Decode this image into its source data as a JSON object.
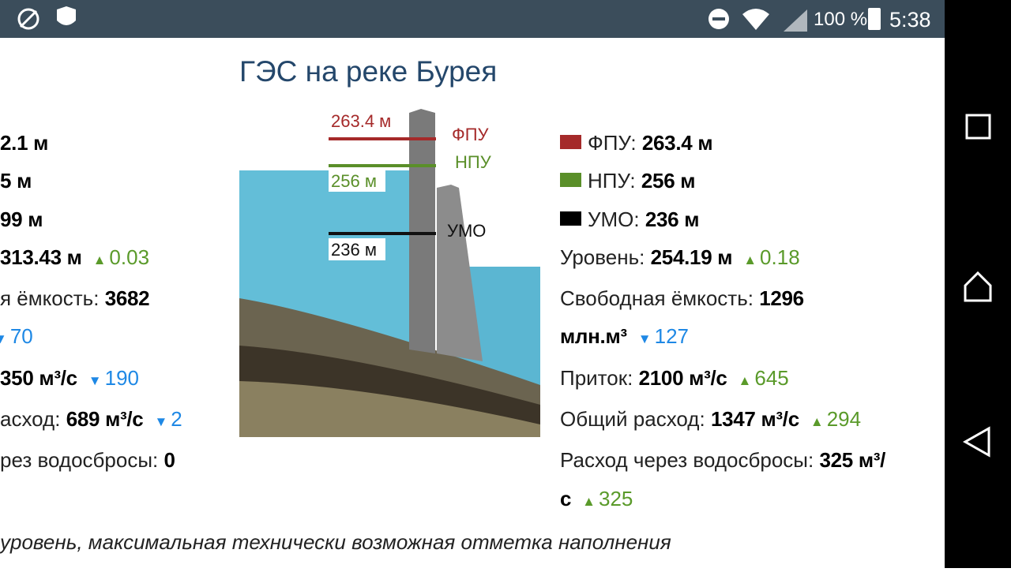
{
  "status_bar": {
    "battery": "100 %",
    "time": "5:38"
  },
  "title": "ГЭС на реке Бурея",
  "left_panel": [
    {
      "value": "2.1 м"
    },
    {
      "value": "5 м"
    },
    {
      "value": "99 м"
    },
    {
      "value": "313.43 м",
      "delta": "0.03",
      "trend": "up"
    },
    {
      "label": "я ёмкость:",
      "value": "3682"
    },
    {
      "delta": "70",
      "trend": "down"
    },
    {
      "value": "350 м³/с",
      "delta": "190",
      "trend": "down"
    },
    {
      "label": "асход:",
      "value": "689 м³/с",
      "delta": "2",
      "trend": "down"
    },
    {
      "label": "рез водосбросы:",
      "value": "0"
    }
  ],
  "diagram": {
    "levels": [
      {
        "value": "263.4 м",
        "name": "ФПУ",
        "color": "#a52a2a"
      },
      {
        "value": "256 м",
        "name": "НПУ",
        "color": "#5a8f29"
      },
      {
        "value": "236 м",
        "name": "УМО",
        "color": "#111111"
      }
    ]
  },
  "right_panel": [
    {
      "label": "ФПУ:",
      "value": "263.4 м",
      "swatch": "#a52a2a"
    },
    {
      "label": "НПУ:",
      "value": "256 м",
      "swatch": "#5a8f29"
    },
    {
      "label": "УМО:",
      "value": "236 м",
      "swatch": "#000000"
    },
    {
      "label": "Уровень:",
      "value": "254.19 м",
      "delta": "0.18",
      "trend": "up"
    },
    {
      "label": "Свободная ёмкость:",
      "value": "1296 млн.м³",
      "delta": "127",
      "trend": "down"
    },
    {
      "label": "Приток:",
      "value": "2100 м³/с",
      "delta": "645",
      "trend": "up"
    },
    {
      "label": "Общий расход:",
      "value": "1347 м³/с",
      "delta": "294",
      "trend": "up"
    },
    {
      "label": "Расход через водосбросы:",
      "value": "325 м³/с",
      "delta": "325",
      "trend": "up"
    }
  ],
  "footnote": "уровень, максимальная технически возможная отметка наполнения"
}
